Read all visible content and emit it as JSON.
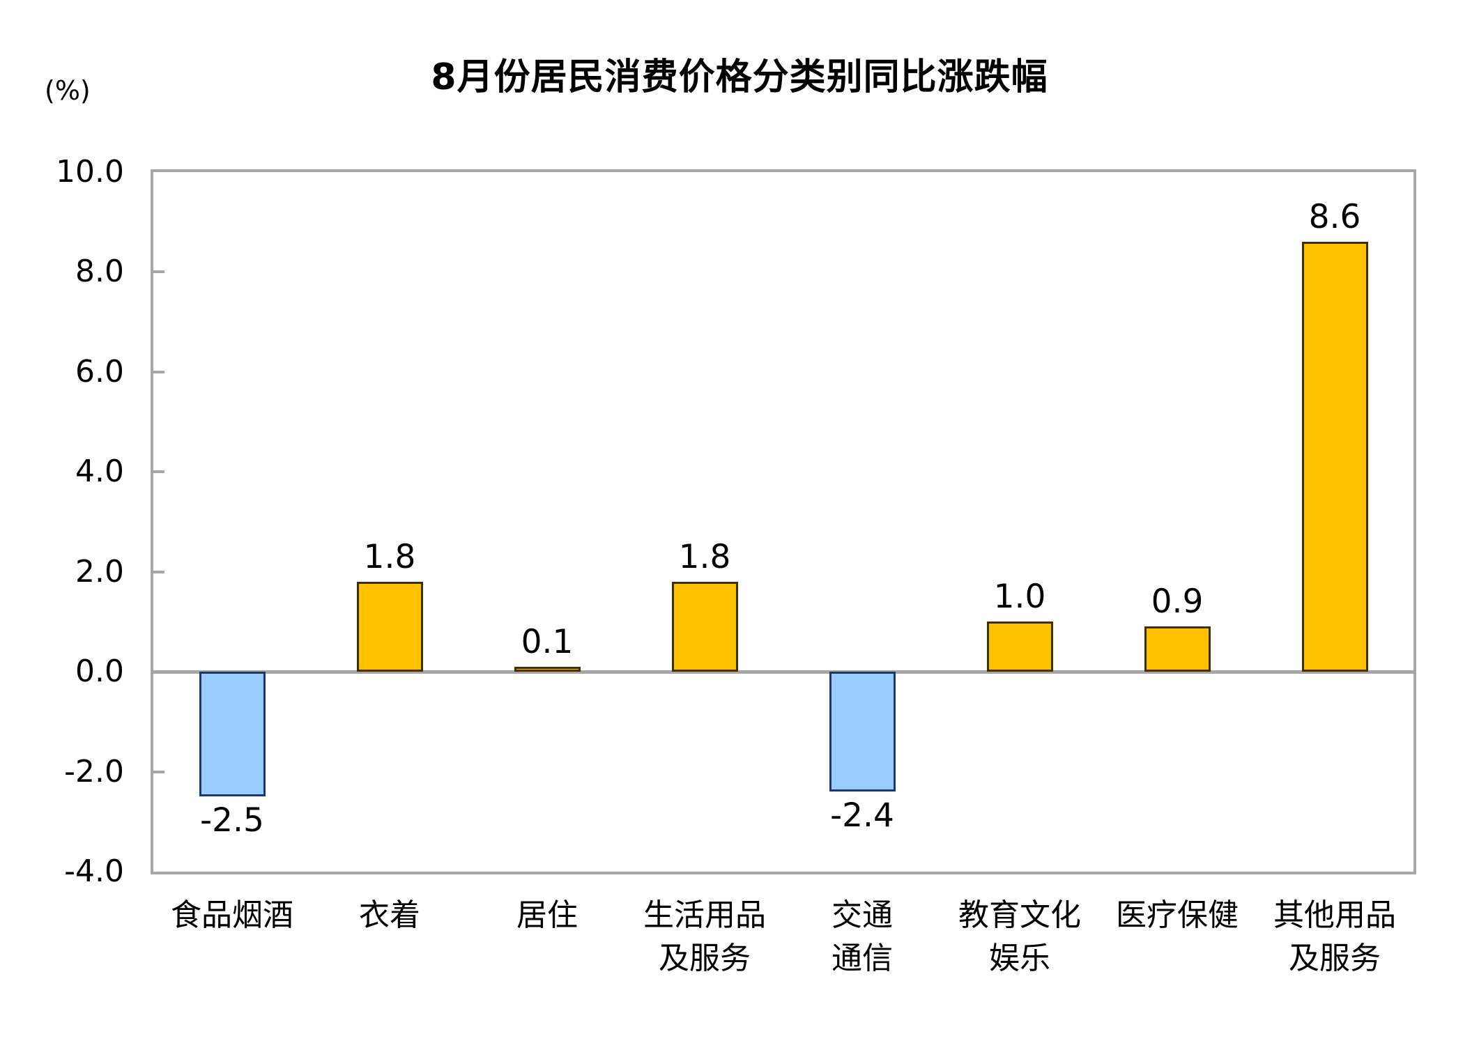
{
  "chart_data": {
    "type": "bar",
    "title": "8月份居民消费价格分类别同比涨跌幅",
    "ylabel": "(%)",
    "xlabel": "",
    "categories": [
      "食品烟酒",
      "衣着",
      "居住",
      "生活用品及服务",
      "交通通信",
      "教育文化娱乐",
      "医疗保健",
      "其他用品及服务"
    ],
    "categories_lines": [
      [
        "食品烟酒"
      ],
      [
        "衣着"
      ],
      [
        "居住"
      ],
      [
        "生活用品",
        "及服务"
      ],
      [
        "交通",
        "通信"
      ],
      [
        "教育文化",
        "娱乐"
      ],
      [
        "医疗保健"
      ],
      [
        "其他用品",
        "及服务"
      ]
    ],
    "values": [
      -2.5,
      1.8,
      0.1,
      1.8,
      -2.4,
      1.0,
      0.9,
      8.6
    ],
    "value_labels": [
      "-2.5",
      "1.8",
      "0.1",
      "1.8",
      "-2.4",
      "1.0",
      "0.9",
      "8.6"
    ],
    "ylim": [
      -4.0,
      10.0
    ],
    "ytick_step": 2.0,
    "yticks": [
      "10.0",
      "8.0",
      "6.0",
      "4.0",
      "2.0",
      "0.0",
      "-2.0",
      "-4.0"
    ],
    "grid": false,
    "legend": "none",
    "colors": {
      "positive_fill": "#FFC000",
      "positive_border": "#3F3000",
      "negative_fill": "#99CCFF",
      "negative_border": "#1F3864",
      "axis_gray": "#A6A6A6",
      "text": "#000000",
      "background": "#FFFFFF"
    }
  }
}
